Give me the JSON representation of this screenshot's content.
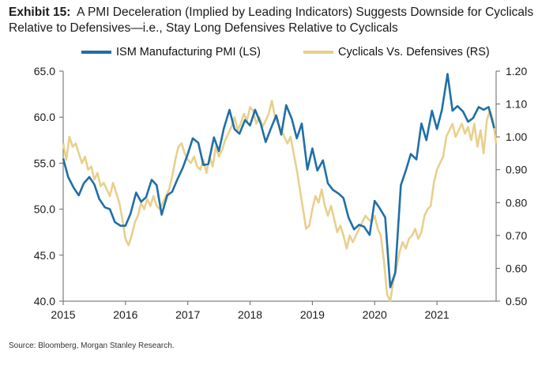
{
  "header": {
    "exhibit_label": "Exhibit 15:",
    "title_text": "A PMI Deceleration (Implied by Leading Indicators) Suggests Downside for Cyclicals Relative to Defensives—i.e., Stay Long Defensives Relative to Cyclicals"
  },
  "source": "Source: Bloomberg, Morgan Stanley Research.",
  "colors": {
    "pmi": "#1f6fa8",
    "ratio": "#e8d08c",
    "axis": "#666666"
  },
  "chart_data": {
    "type": "line",
    "x_ticks": [
      "2015",
      "2016",
      "2017",
      "2018",
      "2019",
      "2020",
      "2021"
    ],
    "xlim": [
      2015,
      2021.95
    ],
    "left_axis": {
      "ticks": [
        "65.0",
        "60.0",
        "55.0",
        "50.0",
        "45.0",
        "40.0"
      ],
      "range": [
        40,
        65
      ]
    },
    "right_axis": {
      "ticks": [
        "1.20",
        "1.10",
        "1.00",
        "0.90",
        "0.80",
        "0.70",
        "0.60",
        "0.50"
      ],
      "range": [
        0.5,
        1.2
      ]
    },
    "legend_position": "top",
    "series": [
      {
        "name": "ISM Manufacturing PMI (LS)",
        "axis": "left",
        "x": [
          2015.0,
          2015.08,
          2015.17,
          2015.25,
          2015.33,
          2015.42,
          2015.5,
          2015.58,
          2015.67,
          2015.75,
          2015.83,
          2015.92,
          2016.0,
          2016.08,
          2016.17,
          2016.25,
          2016.33,
          2016.42,
          2016.5,
          2016.58,
          2016.67,
          2016.75,
          2016.83,
          2016.92,
          2017.0,
          2017.08,
          2017.17,
          2017.25,
          2017.33,
          2017.42,
          2017.5,
          2017.58,
          2017.67,
          2017.75,
          2017.83,
          2017.92,
          2018.0,
          2018.08,
          2018.17,
          2018.25,
          2018.33,
          2018.42,
          2018.5,
          2018.58,
          2018.67,
          2018.75,
          2018.83,
          2018.92,
          2019.0,
          2019.08,
          2019.17,
          2019.25,
          2019.33,
          2019.42,
          2019.5,
          2019.58,
          2019.67,
          2019.75,
          2019.83,
          2019.92,
          2020.0,
          2020.08,
          2020.17,
          2020.25,
          2020.33,
          2020.42,
          2020.5,
          2020.58,
          2020.67,
          2020.75,
          2020.83,
          2020.92,
          2021.0,
          2021.08,
          2021.17,
          2021.25,
          2021.33,
          2021.42,
          2021.5,
          2021.58,
          2021.67,
          2021.75,
          2021.83,
          2021.92
        ],
        "values": [
          55.5,
          53.5,
          52.3,
          51.5,
          52.8,
          53.5,
          52.7,
          51.1,
          50.2,
          50.0,
          48.6,
          48.2,
          48.2,
          49.5,
          51.8,
          50.8,
          51.3,
          53.2,
          52.6,
          49.4,
          51.5,
          51.9,
          53.2,
          54.5,
          56.0,
          57.7,
          57.2,
          54.8,
          54.9,
          57.8,
          56.3,
          58.8,
          60.8,
          58.7,
          58.2,
          59.7,
          59.1,
          60.8,
          59.3,
          57.3,
          58.7,
          60.2,
          58.1,
          61.3,
          59.8,
          57.7,
          59.3,
          54.3,
          56.6,
          54.2,
          55.3,
          52.8,
          52.1,
          51.7,
          51.2,
          49.1,
          47.8,
          48.3,
          48.1,
          47.2,
          50.9,
          50.1,
          49.1,
          41.5,
          43.1,
          52.6,
          54.2,
          56.0,
          55.4,
          59.3,
          57.5,
          60.7,
          58.7,
          60.8,
          64.7,
          60.7,
          61.2,
          60.6,
          59.5,
          59.9,
          61.1,
          60.8,
          61.1,
          58.8
        ]
      },
      {
        "name": "Cyclicals Vs. Defensives (RS)",
        "axis": "right",
        "x": [
          2015.0,
          2015.05,
          2015.1,
          2015.15,
          2015.2,
          2015.25,
          2015.3,
          2015.35,
          2015.4,
          2015.45,
          2015.5,
          2015.55,
          2015.6,
          2015.65,
          2015.7,
          2015.75,
          2015.8,
          2015.85,
          2015.9,
          2015.95,
          2016.0,
          2016.05,
          2016.1,
          2016.15,
          2016.2,
          2016.25,
          2016.3,
          2016.35,
          2016.4,
          2016.45,
          2016.5,
          2016.55,
          2016.6,
          2016.65,
          2016.7,
          2016.75,
          2016.8,
          2016.85,
          2016.9,
          2016.95,
          2017.0,
          2017.05,
          2017.1,
          2017.15,
          2017.2,
          2017.25,
          2017.3,
          2017.35,
          2017.4,
          2017.45,
          2017.5,
          2017.55,
          2017.6,
          2017.65,
          2017.7,
          2017.75,
          2017.8,
          2017.85,
          2017.9,
          2017.95,
          2018.0,
          2018.05,
          2018.1,
          2018.15,
          2018.2,
          2018.25,
          2018.3,
          2018.35,
          2018.4,
          2018.45,
          2018.5,
          2018.55,
          2018.6,
          2018.65,
          2018.7,
          2018.75,
          2018.8,
          2018.85,
          2018.9,
          2018.95,
          2019.0,
          2019.05,
          2019.1,
          2019.15,
          2019.2,
          2019.25,
          2019.3,
          2019.35,
          2019.4,
          2019.45,
          2019.5,
          2019.55,
          2019.6,
          2019.65,
          2019.7,
          2019.75,
          2019.8,
          2019.85,
          2019.9,
          2019.95,
          2020.0,
          2020.05,
          2020.1,
          2020.15,
          2020.2,
          2020.25,
          2020.3,
          2020.35,
          2020.4,
          2020.45,
          2020.5,
          2020.55,
          2020.6,
          2020.65,
          2020.7,
          2020.75,
          2020.8,
          2020.85,
          2020.9,
          2020.95,
          2021.0,
          2021.05,
          2021.1,
          2021.15,
          2021.2,
          2021.25,
          2021.3,
          2021.35,
          2021.4,
          2021.45,
          2021.5,
          2021.55,
          2021.6,
          2021.65,
          2021.7,
          2021.75,
          2021.8,
          2021.85,
          2021.9,
          2021.95
        ],
        "values": [
          0.98,
          0.93,
          1.0,
          0.97,
          0.98,
          0.95,
          0.92,
          0.94,
          0.9,
          0.91,
          0.87,
          0.89,
          0.85,
          0.86,
          0.84,
          0.82,
          0.86,
          0.83,
          0.8,
          0.75,
          0.69,
          0.67,
          0.7,
          0.74,
          0.76,
          0.8,
          0.78,
          0.81,
          0.79,
          0.82,
          0.79,
          0.78,
          0.8,
          0.82,
          0.84,
          0.88,
          0.93,
          0.97,
          0.98,
          0.95,
          0.93,
          0.92,
          0.94,
          0.91,
          0.9,
          0.93,
          0.89,
          0.94,
          0.91,
          0.97,
          0.94,
          0.96,
          0.99,
          1.01,
          1.03,
          1.06,
          1.02,
          1.04,
          1.07,
          1.05,
          1.09,
          1.08,
          1.04,
          1.06,
          1.03,
          1.05,
          1.07,
          1.11,
          1.06,
          1.04,
          1.02,
          1.0,
          0.98,
          1.0,
          0.95,
          0.9,
          0.84,
          0.78,
          0.72,
          0.73,
          0.78,
          0.82,
          0.8,
          0.84,
          0.79,
          0.76,
          0.79,
          0.75,
          0.71,
          0.73,
          0.7,
          0.66,
          0.7,
          0.68,
          0.7,
          0.72,
          0.74,
          0.76,
          0.75,
          0.74,
          0.76,
          0.72,
          0.7,
          0.62,
          0.52,
          0.5,
          0.56,
          0.6,
          0.65,
          0.68,
          0.66,
          0.69,
          0.7,
          0.72,
          0.69,
          0.71,
          0.76,
          0.78,
          0.79,
          0.86,
          0.9,
          0.92,
          0.94,
          1.0,
          1.02,
          1.04,
          1.0,
          1.02,
          1.04,
          1.01,
          1.03,
          0.99,
          1.04,
          0.97,
          1.02,
          0.95,
          1.05,
          1.08,
          1.05,
          0.98
        ]
      }
    ]
  }
}
